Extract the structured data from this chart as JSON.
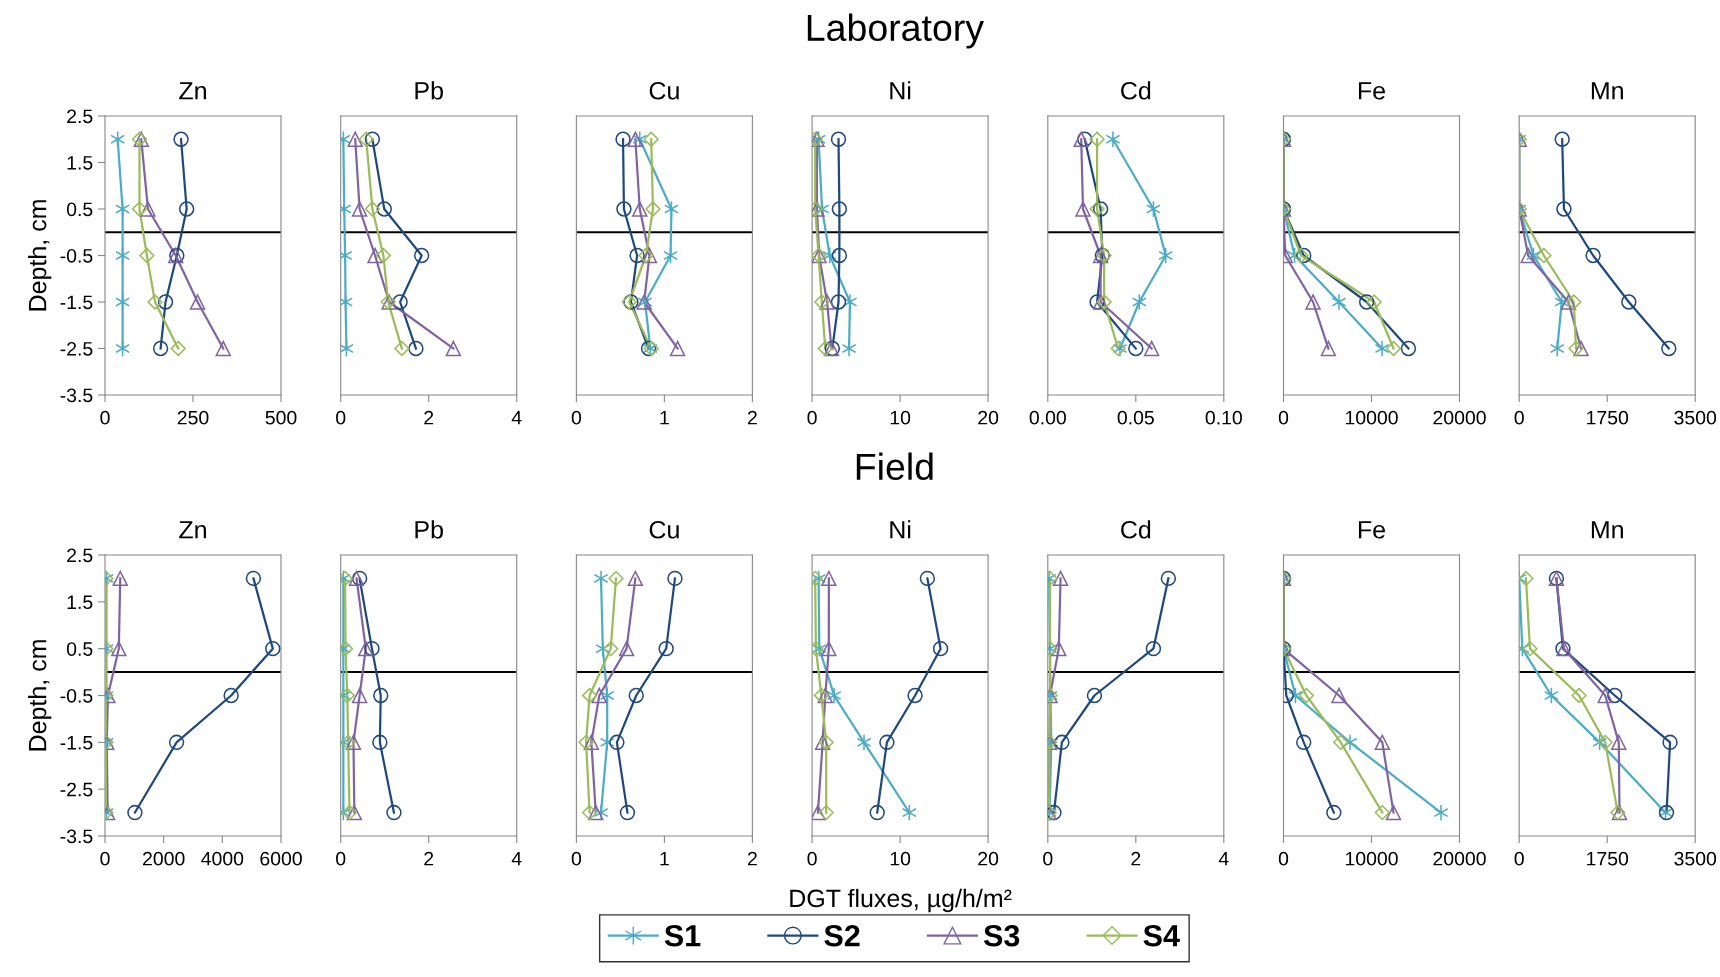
{
  "chart_data": [
    {
      "type": "line",
      "title": "Zn",
      "ylabel": "Depth, cm",
      "annotations": [
        "Laboratory"
      ],
      "xlim": [
        0,
        500
      ],
      "xticks": [
        0,
        250,
        500
      ],
      "ylim": [
        -3.5,
        2.5
      ],
      "yticks": [
        2.5,
        1.5,
        0.5,
        -0.5,
        -1.5,
        -2.5,
        -3.5
      ],
      "ref_lines": [
        {
          "axis": "y",
          "value": 0,
          "color": "#000000"
        }
      ],
      "series": [
        {
          "color": "#4bacc6",
          "marker": "cross",
          "x": [
            36,
            50,
            50,
            50,
            50
          ],
          "values": [
            2,
            0.5,
            -0.5,
            -1.5,
            -2.5
          ]
        },
        {
          "color": "#1f497d",
          "marker": "circle",
          "x": [
            216,
            232,
            204,
            172,
            158
          ],
          "values": [
            2,
            0.5,
            -0.5,
            -1.5,
            -2.5
          ]
        },
        {
          "color": "#8064a2",
          "marker": "triangle",
          "x": [
            103,
            122,
            201,
            263,
            336
          ],
          "values": [
            2,
            0.5,
            -0.5,
            -1.5,
            -2.5
          ]
        },
        {
          "color": "#9bbb59",
          "marker": "diamond",
          "x": [
            98,
            98,
            119,
            142,
            208
          ],
          "values": [
            2,
            0.5,
            -0.5,
            -1.5,
            -2.5
          ]
        }
      ]
    },
    {
      "type": "line",
      "title": "Pb",
      "tick_labels": "x",
      "xlim": [
        0,
        4
      ],
      "xticks": [
        0,
        2,
        4
      ],
      "ylim": [
        -3.5,
        2.5
      ],
      "yticks": [
        2.5,
        1.5,
        0.5,
        -0.5,
        -1.5,
        -2.5,
        -3.5
      ],
      "ref_lines": [
        {
          "axis": "y",
          "value": 0,
          "color": "#000000"
        }
      ],
      "series": [
        {
          "color": "#4bacc6",
          "marker": "cross",
          "x": [
            0.06,
            0.08,
            0.1,
            0.11,
            0.13
          ],
          "values": [
            2,
            0.5,
            -0.5,
            -1.5,
            -2.5
          ]
        },
        {
          "color": "#1f497d",
          "marker": "circle",
          "x": [
            0.72,
            0.99,
            1.84,
            1.35,
            1.71
          ],
          "values": [
            2,
            0.5,
            -0.5,
            -1.5,
            -2.5
          ]
        },
        {
          "color": "#8064a2",
          "marker": "triangle",
          "x": [
            0.33,
            0.43,
            0.78,
            1.1,
            2.56
          ],
          "values": [
            2,
            0.5,
            -0.5,
            -1.5,
            -2.5
          ]
        },
        {
          "color": "#9bbb59",
          "marker": "diamond",
          "x": [
            0.58,
            0.72,
            0.97,
            1.08,
            1.39
          ],
          "values": [
            2,
            0.5,
            -0.5,
            -1.5,
            -2.5
          ]
        }
      ]
    },
    {
      "type": "line",
      "title": "Cu",
      "tick_labels": "x",
      "xlim": [
        0,
        2
      ],
      "xticks": [
        0,
        1,
        2
      ],
      "ylim": [
        -3.5,
        2.5
      ],
      "yticks": [
        2.5,
        1.5,
        0.5,
        -0.5,
        -1.5,
        -2.5,
        -3.5
      ],
      "ref_lines": [
        {
          "axis": "y",
          "value": 0,
          "color": "#000000"
        }
      ],
      "series": [
        {
          "color": "#4bacc6",
          "marker": "cross",
          "x": [
            0.72,
            1.08,
            1.07,
            0.78,
            0.84
          ],
          "values": [
            2,
            0.5,
            -0.5,
            -1.5,
            -2.5
          ]
        },
        {
          "color": "#1f497d",
          "marker": "circle",
          "x": [
            0.53,
            0.54,
            0.69,
            0.62,
            0.82
          ],
          "values": [
            2,
            0.5,
            -0.5,
            -1.5,
            -2.5
          ]
        },
        {
          "color": "#8064a2",
          "marker": "triangle",
          "x": [
            0.67,
            0.72,
            0.83,
            0.77,
            1.15
          ],
          "values": [
            2,
            0.5,
            -0.5,
            -1.5,
            -2.5
          ]
        },
        {
          "color": "#9bbb59",
          "marker": "diamond",
          "x": [
            0.85,
            0.87,
            0.79,
            0.6,
            0.85
          ],
          "values": [
            2,
            0.5,
            -0.5,
            -1.5,
            -2.5
          ]
        }
      ]
    },
    {
      "type": "line",
      "title": "Ni",
      "tick_labels": "x",
      "xlim": [
        0,
        20
      ],
      "xticks": [
        0,
        10,
        20
      ],
      "ylim": [
        -3.5,
        2.5
      ],
      "yticks": [
        2.5,
        1.5,
        0.5,
        -0.5,
        -1.5,
        -2.5,
        -3.5
      ],
      "ref_lines": [
        {
          "axis": "y",
          "value": 0,
          "color": "#000000"
        }
      ],
      "series": [
        {
          "color": "#4bacc6",
          "marker": "cross",
          "x": [
            0.74,
            1.13,
            2.0,
            4.3,
            4.2
          ],
          "values": [
            2,
            0.5,
            -0.5,
            -1.5,
            -2.5
          ]
        },
        {
          "color": "#1f497d",
          "marker": "circle",
          "x": [
            3.0,
            3.1,
            3.1,
            3.0,
            2.3
          ],
          "values": [
            2,
            0.5,
            -0.5,
            -1.5,
            -2.5
          ]
        },
        {
          "color": "#8064a2",
          "marker": "triangle",
          "x": [
            0.55,
            0.55,
            0.8,
            1.7,
            2.2
          ],
          "values": [
            2,
            0.5,
            -0.5,
            -1.5,
            -2.5
          ]
        },
        {
          "color": "#9bbb59",
          "marker": "diamond",
          "x": [
            0.35,
            0.35,
            0.74,
            1.1,
            1.5
          ],
          "values": [
            2,
            0.5,
            -0.5,
            -1.5,
            -2.5
          ]
        }
      ]
    },
    {
      "type": "line",
      "title": "Cd",
      "tick_labels": "x",
      "xlim": [
        0,
        0.1
      ],
      "xticks": [
        {
          "value": 0,
          "label": "0.00"
        },
        {
          "value": 0.05,
          "label": "0.05"
        },
        {
          "value": 0.1,
          "label": "0.10"
        }
      ],
      "ylim": [
        -3.5,
        2.5
      ],
      "yticks": [
        2.5,
        1.5,
        0.5,
        -0.5,
        -1.5,
        -2.5,
        -3.5
      ],
      "ref_lines": [
        {
          "axis": "y",
          "value": 0,
          "color": "#000000"
        }
      ],
      "series": [
        {
          "color": "#4bacc6",
          "marker": "cross",
          "x": [
            0.037,
            0.06,
            0.067,
            0.052,
            0.041
          ],
          "values": [
            2,
            0.5,
            -0.5,
            -1.5,
            -2.5
          ]
        },
        {
          "color": "#1f497d",
          "marker": "circle",
          "x": [
            0.021,
            0.03,
            0.031,
            0.028,
            0.05
          ],
          "values": [
            2,
            0.5,
            -0.5,
            -1.5,
            -2.5
          ]
        },
        {
          "color": "#8064a2",
          "marker": "triangle",
          "x": [
            0.019,
            0.02,
            0.03,
            0.03,
            0.059
          ],
          "values": [
            2,
            0.5,
            -0.5,
            -1.5,
            -2.5
          ]
        },
        {
          "color": "#9bbb59",
          "marker": "diamond",
          "x": [
            0.028,
            0.028,
            0.032,
            0.032,
            0.04
          ],
          "values": [
            2,
            0.5,
            -0.5,
            -1.5,
            -2.5
          ]
        }
      ]
    },
    {
      "type": "line",
      "title": "Fe",
      "tick_labels": "x",
      "xlim": [
        0,
        20000
      ],
      "xticks": [
        0,
        10000,
        20000
      ],
      "ylim": [
        -3.5,
        2.5
      ],
      "yticks": [
        2.5,
        1.5,
        0.5,
        -0.5,
        -1.5,
        -2.5,
        -3.5
      ],
      "ref_lines": [
        {
          "axis": "y",
          "value": 0,
          "color": "#000000"
        }
      ],
      "series": [
        {
          "color": "#4bacc6",
          "marker": "cross",
          "x": [
            0,
            0,
            1260,
            6300,
            11200
          ],
          "values": [
            2,
            0.5,
            -0.5,
            -1.5,
            -2.5
          ]
        },
        {
          "color": "#1f497d",
          "marker": "circle",
          "x": [
            0,
            0,
            2300,
            9450,
            14200
          ],
          "values": [
            2,
            0.5,
            -0.5,
            -1.5,
            -2.5
          ]
        },
        {
          "color": "#8064a2",
          "marker": "triangle",
          "x": [
            0,
            0,
            200,
            3360,
            5100
          ],
          "values": [
            2,
            0.5,
            -0.5,
            -1.5,
            -2.5
          ]
        },
        {
          "color": "#9bbb59",
          "marker": "diamond",
          "x": [
            0,
            0,
            2000,
            10300,
            12500
          ],
          "values": [
            2,
            0.5,
            -0.5,
            -1.5,
            -2.5
          ]
        }
      ]
    },
    {
      "type": "line",
      "title": "Mn",
      "tick_labels": "x",
      "xlim": [
        0,
        3500
      ],
      "xticks": [
        0,
        1750,
        3500
      ],
      "ylim": [
        -3.5,
        2.5
      ],
      "yticks": [
        2.5,
        1.5,
        0.5,
        -0.5,
        -1.5,
        -2.5,
        -3.5
      ],
      "ref_lines": [
        {
          "axis": "y",
          "value": 0,
          "color": "#000000"
        }
      ],
      "series": [
        {
          "color": "#4bacc6",
          "marker": "cross",
          "x": [
            0,
            0,
            285,
            846,
            757
          ],
          "values": [
            2,
            0.5,
            -0.5,
            -1.5,
            -2.5
          ]
        },
        {
          "color": "#1f497d",
          "marker": "circle",
          "x": [
            855,
            890,
            1470,
            2180,
            2975
          ],
          "values": [
            2,
            0.5,
            -0.5,
            -1.5,
            -2.5
          ]
        },
        {
          "color": "#8064a2",
          "marker": "triangle",
          "x": [
            0,
            0,
            178,
            980,
            1230
          ],
          "values": [
            2,
            0.5,
            -0.5,
            -1.5,
            -2.5
          ]
        },
        {
          "color": "#9bbb59",
          "marker": "diamond",
          "x": [
            0,
            0,
            490,
            1086,
            1130
          ],
          "values": [
            2,
            0.5,
            -0.5,
            -1.5,
            -2.5
          ]
        }
      ]
    },
    {
      "type": "line",
      "title": "Zn",
      "ylabel": "Depth, cm",
      "annotations": [
        "Field"
      ],
      "xlim": [
        0,
        6000
      ],
      "xticks": [
        0,
        2000,
        4000,
        6000
      ],
      "ylim": [
        -3.5,
        2.5
      ],
      "yticks": [
        2.5,
        1.5,
        0.5,
        -0.5,
        -1.5,
        -2.5,
        -3.5
      ],
      "ref_lines": [
        {
          "axis": "y",
          "value": 0,
          "color": "#000000"
        }
      ],
      "series": [
        {
          "color": "#4bacc6",
          "marker": "cross",
          "x": [
            50,
            50,
            50,
            50,
            50
          ],
          "values": [
            2,
            0.5,
            -0.5,
            -1.5,
            -3
          ]
        },
        {
          "color": "#1f497d",
          "marker": "circle",
          "x": [
            5060,
            5720,
            4300,
            2440,
            1020
          ],
          "values": [
            2,
            0.5,
            -0.5,
            -1.5,
            -3
          ]
        },
        {
          "color": "#8064a2",
          "marker": "triangle",
          "x": [
            520,
            470,
            100,
            60,
            90
          ],
          "values": [
            2,
            0.5,
            -0.5,
            -1.5,
            -3
          ]
        },
        {
          "color": "#9bbb59",
          "marker": "diamond",
          "x": [
            30,
            30,
            30,
            30,
            30
          ],
          "values": [
            2,
            0.5,
            -0.5,
            -1.5,
            -3
          ]
        }
      ]
    },
    {
      "type": "line",
      "title": "Pb",
      "tick_labels": "x",
      "xlim": [
        0,
        4
      ],
      "xticks": [
        0,
        2,
        4
      ],
      "ylim": [
        -3.5,
        2.5
      ],
      "yticks": [
        2.5,
        1.5,
        0.5,
        -0.5,
        -1.5,
        -2.5,
        -3.5
      ],
      "ref_lines": [
        {
          "axis": "y",
          "value": 0,
          "color": "#000000"
        }
      ],
      "series": [
        {
          "color": "#4bacc6",
          "marker": "cross",
          "x": [
            0.06,
            0.06,
            0.06,
            0.06,
            0.06
          ],
          "values": [
            2,
            0.5,
            -0.5,
            -1.5,
            -3
          ]
        },
        {
          "color": "#1f497d",
          "marker": "circle",
          "x": [
            0.43,
            0.71,
            0.91,
            0.89,
            1.21
          ],
          "values": [
            2,
            0.5,
            -0.5,
            -1.5,
            -3
          ]
        },
        {
          "color": "#8064a2",
          "marker": "triangle",
          "x": [
            0.36,
            0.57,
            0.43,
            0.29,
            0.31
          ],
          "values": [
            2,
            0.5,
            -0.5,
            -1.5,
            -3
          ]
        },
        {
          "color": "#9bbb59",
          "marker": "diamond",
          "x": [
            0.1,
            0.11,
            0.15,
            0.17,
            0.2
          ],
          "values": [
            2,
            0.5,
            -0.5,
            -1.5,
            -3
          ]
        }
      ]
    },
    {
      "type": "line",
      "title": "Cu",
      "tick_labels": "x",
      "xlim": [
        0,
        2
      ],
      "xticks": [
        0,
        1,
        2
      ],
      "ylim": [
        -3.5,
        2.5
      ],
      "yticks": [
        2.5,
        1.5,
        0.5,
        -0.5,
        -1.5,
        -2.5,
        -3.5
      ],
      "ref_lines": [
        {
          "axis": "y",
          "value": 0,
          "color": "#000000"
        }
      ],
      "series": [
        {
          "color": "#4bacc6",
          "marker": "cross",
          "x": [
            0.28,
            0.3,
            0.35,
            0.35,
            0.28
          ],
          "values": [
            2,
            0.5,
            -0.5,
            -1.5,
            -3
          ]
        },
        {
          "color": "#1f497d",
          "marker": "circle",
          "x": [
            1.12,
            1.02,
            0.68,
            0.46,
            0.58
          ],
          "values": [
            2,
            0.5,
            -0.5,
            -1.5,
            -3
          ]
        },
        {
          "color": "#8064a2",
          "marker": "triangle",
          "x": [
            0.67,
            0.57,
            0.26,
            0.17,
            0.22
          ],
          "values": [
            2,
            0.5,
            -0.5,
            -1.5,
            -3
          ]
        },
        {
          "color": "#9bbb59",
          "marker": "diamond",
          "x": [
            0.45,
            0.39,
            0.15,
            0.11,
            0.15
          ],
          "values": [
            2,
            0.5,
            -0.5,
            -1.5,
            -3
          ]
        }
      ]
    },
    {
      "type": "line",
      "title": "Ni",
      "tick_labels": "x",
      "xlabel": "DGT fluxes, µg/h/m²",
      "legend": "bottom",
      "xlim": [
        0,
        20
      ],
      "xticks": [
        0,
        10,
        20
      ],
      "ylim": [
        -3.5,
        2.5
      ],
      "yticks": [
        2.5,
        1.5,
        0.5,
        -0.5,
        -1.5,
        -2.5,
        -3.5
      ],
      "ref_lines": [
        {
          "axis": "y",
          "value": 0,
          "color": "#000000"
        }
      ],
      "series": [
        {
          "name": "S1",
          "color": "#4bacc6",
          "marker": "cross",
          "x": [
            0.74,
            0.82,
            2.5,
            5.9,
            11.05
          ],
          "values": [
            2,
            0.5,
            -0.5,
            -1.5,
            -3
          ]
        },
        {
          "name": "S2",
          "color": "#1f497d",
          "marker": "circle",
          "x": [
            13.1,
            14.6,
            11.7,
            8.5,
            7.4
          ],
          "values": [
            2,
            0.5,
            -0.5,
            -1.5,
            -3
          ]
        },
        {
          "name": "S3",
          "color": "#8064a2",
          "marker": "triangle",
          "x": [
            1.9,
            1.9,
            1.5,
            1.2,
            0.66
          ],
          "values": [
            2,
            0.5,
            -0.5,
            -1.5,
            -3
          ]
        },
        {
          "name": "S4",
          "color": "#9bbb59",
          "marker": "diamond",
          "x": [
            0.35,
            0.43,
            1.05,
            1.6,
            1.6
          ],
          "values": [
            2,
            0.5,
            -0.5,
            -1.5,
            -3
          ]
        }
      ]
    },
    {
      "type": "line",
      "title": "Cd",
      "tick_labels": "x",
      "xlim": [
        0,
        4
      ],
      "xticks": [
        0,
        2,
        4
      ],
      "ylim": [
        -3.5,
        2.5
      ],
      "yticks": [
        2.5,
        1.5,
        0.5,
        -0.5,
        -1.5,
        -2.5,
        -3.5
      ],
      "ref_lines": [
        {
          "axis": "y",
          "value": 0,
          "color": "#000000"
        }
      ],
      "series": [
        {
          "color": "#4bacc6",
          "marker": "cross",
          "x": [
            0.03,
            0.05,
            0.06,
            0.08,
            0.04
          ],
          "values": [
            2,
            0.5,
            -0.5,
            -1.5,
            -3
          ]
        },
        {
          "color": "#1f497d",
          "marker": "circle",
          "x": [
            2.74,
            2.4,
            1.06,
            0.32,
            0.14
          ],
          "values": [
            2,
            0.5,
            -0.5,
            -1.5,
            -3
          ]
        },
        {
          "color": "#8064a2",
          "marker": "triangle",
          "x": [
            0.29,
            0.25,
            0.05,
            0.04,
            0.02
          ],
          "values": [
            2,
            0.5,
            -0.5,
            -1.5,
            -3
          ]
        },
        {
          "color": "#9bbb59",
          "marker": "diamond",
          "x": [
            0.05,
            0.05,
            0.05,
            0.04,
            0.03
          ],
          "values": [
            2,
            0.5,
            -0.5,
            -1.5,
            -3
          ]
        }
      ]
    },
    {
      "type": "line",
      "title": "Fe",
      "tick_labels": "x",
      "xlim": [
        0,
        20000
      ],
      "xticks": [
        0,
        10000,
        20000
      ],
      "ylim": [
        -3.5,
        2.5
      ],
      "yticks": [
        2.5,
        1.5,
        0.5,
        -0.5,
        -1.5,
        -2.5,
        -3.5
      ],
      "ref_lines": [
        {
          "axis": "y",
          "value": 0,
          "color": "#000000"
        }
      ],
      "series": [
        {
          "color": "#4bacc6",
          "marker": "cross",
          "x": [
            0,
            0,
            1360,
            7560,
            17900
          ],
          "values": [
            2,
            0.5,
            -0.5,
            -1.5,
            -3
          ]
        },
        {
          "color": "#1f497d",
          "marker": "circle",
          "x": [
            0,
            0,
            315,
            2300,
            5720
          ],
          "values": [
            2,
            0.5,
            -0.5,
            -1.5,
            -3
          ]
        },
        {
          "color": "#8064a2",
          "marker": "triangle",
          "x": [
            0,
            0,
            6300,
            11230,
            12500
          ],
          "values": [
            2,
            0.5,
            -0.5,
            -1.5,
            -3
          ]
        },
        {
          "color": "#9bbb59",
          "marker": "diamond",
          "x": [
            0,
            0,
            2600,
            6500,
            11230
          ],
          "values": [
            2,
            0.5,
            -0.5,
            -1.5,
            -3
          ]
        }
      ]
    },
    {
      "type": "line",
      "title": "Mn",
      "tick_labels": "x",
      "xlim": [
        0,
        3500
      ],
      "xticks": [
        0,
        1750,
        3500
      ],
      "ylim": [
        -3.5,
        2.5
      ],
      "yticks": [
        2.5,
        1.5,
        0.5,
        -0.5,
        -1.5,
        -2.5,
        -3.5
      ],
      "ref_lines": [
        {
          "axis": "y",
          "value": 0,
          "color": "#000000"
        }
      ],
      "series": [
        {
          "color": "#4bacc6",
          "marker": "cross",
          "x": [
            0,
            62,
            640,
            1600,
            2910
          ],
          "values": [
            2,
            0.5,
            -0.5,
            -1.5,
            -3
          ]
        },
        {
          "color": "#1f497d",
          "marker": "circle",
          "x": [
            740,
            870,
            1900,
            3000,
            2930
          ],
          "values": [
            2,
            0.5,
            -0.5,
            -1.5,
            -3
          ]
        },
        {
          "color": "#8064a2",
          "marker": "triangle",
          "x": [
            740,
            890,
            1710,
            1980,
            1995
          ],
          "values": [
            2,
            0.5,
            -0.5,
            -1.5,
            -3
          ]
        },
        {
          "color": "#9bbb59",
          "marker": "diamond",
          "x": [
            134,
            214,
            1190,
            1710,
            1960
          ],
          "values": [
            2,
            0.5,
            -0.5,
            -1.5,
            -3
          ]
        }
      ]
    }
  ]
}
